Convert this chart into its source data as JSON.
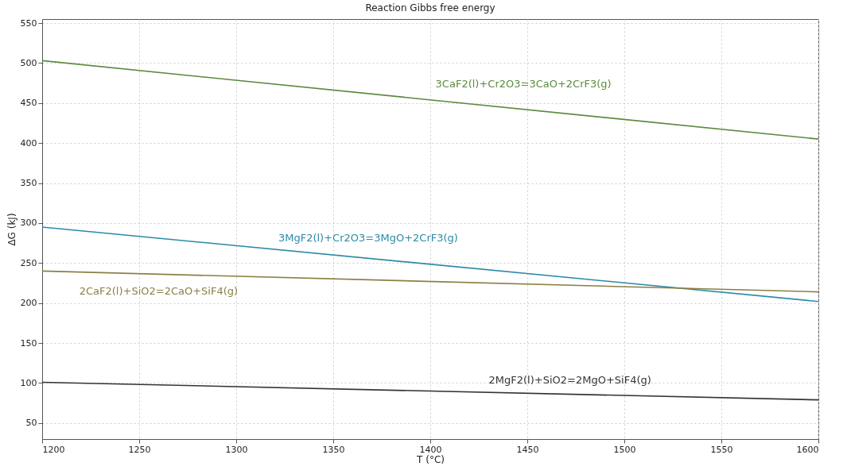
{
  "chart_data": {
    "type": "line",
    "title": "Reaction Gibbs free energy",
    "xlabel": "T (°C)",
    "ylabel": "ΔG (kJ)",
    "x": [
      1200,
      1600
    ],
    "xlim": [
      1200,
      1600
    ],
    "xticks": [
      1200,
      1250,
      1300,
      1350,
      1400,
      1450,
      1500,
      1550,
      1600
    ],
    "ylim": [
      30,
      555
    ],
    "yticks": [
      50,
      100,
      150,
      200,
      250,
      300,
      350,
      400,
      450,
      500,
      550
    ],
    "grid": true,
    "line_style": "solid",
    "series": [
      {
        "name": "3CaF2(l)+Cr2O3=3CaO+2CrF3(g)",
        "color": "#5b8a3e",
        "values": [
          503,
          405
        ]
      },
      {
        "name": "3MgF2(l)+Cr2O3=3MgO+2CrF3(g)",
        "color": "#2b8aa6",
        "values": [
          295,
          202
        ]
      },
      {
        "name": "2CaF2(l)+SiO2=2CaO+SiF4(g)",
        "color": "#8a7f45",
        "values": [
          240,
          214
        ]
      },
      {
        "name": "2MgF2(l)+SiO2=2MgO+SiF4(g)",
        "color": "#333333",
        "values": [
          101,
          79
        ]
      }
    ]
  }
}
